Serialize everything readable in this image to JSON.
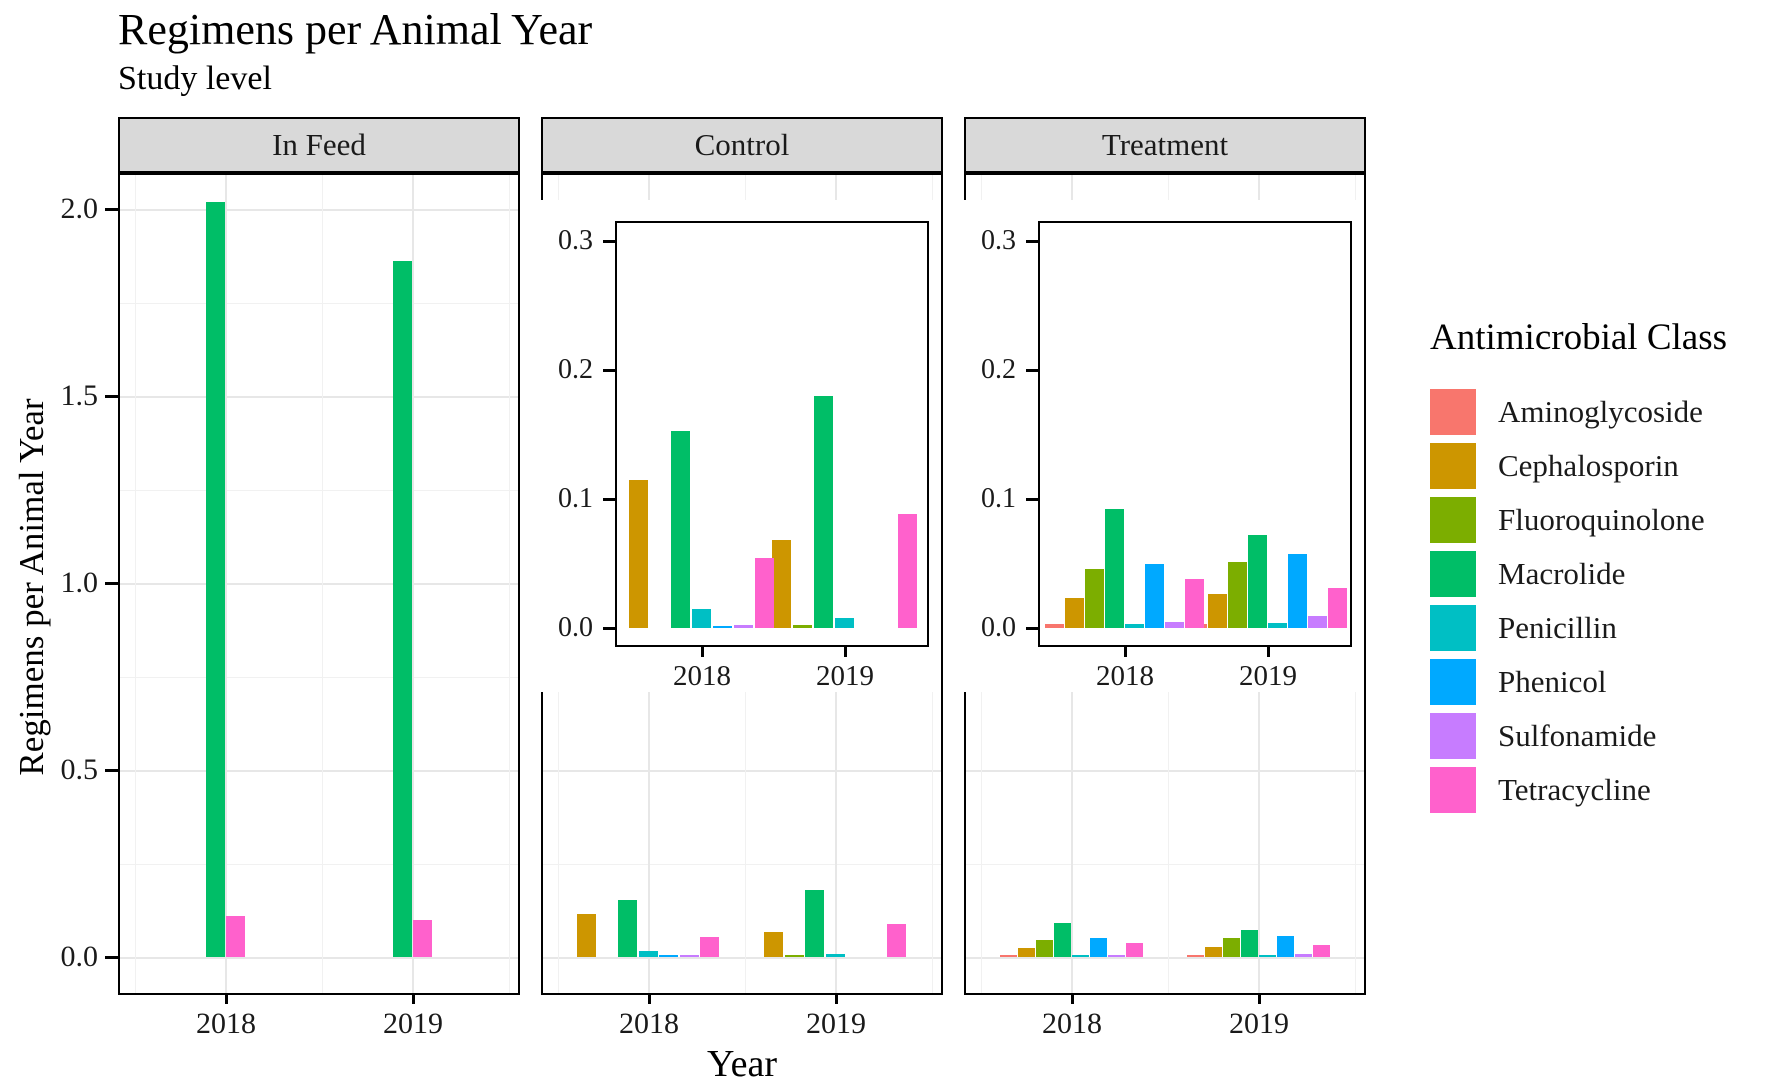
{
  "title": "Regimens per Animal Year",
  "subtitle": "Study level",
  "x_axis": {
    "title": "Year",
    "ticks": [
      "2018",
      "2019"
    ]
  },
  "y_axis": {
    "title": "Regimens per Animal Year",
    "ticks": [
      "2.0",
      "1.5",
      "1.0",
      "0.5",
      "0.0"
    ]
  },
  "legend": {
    "title": "Antimicrobial Class",
    "items": [
      {
        "label": "Aminoglycoside",
        "color": "#F8766D"
      },
      {
        "label": "Cephalosporin",
        "color": "#CD9600"
      },
      {
        "label": "Fluoroquinolone",
        "color": "#7CAE00"
      },
      {
        "label": "Macrolide",
        "color": "#00BE67"
      },
      {
        "label": "Penicillin",
        "color": "#00BFC4"
      },
      {
        "label": "Phenicol",
        "color": "#00A9FF"
      },
      {
        "label": "Sulfonamide",
        "color": "#C77CFF"
      },
      {
        "label": "Tetracycline",
        "color": "#FF61CC"
      }
    ]
  },
  "chart_data": {
    "type": "bar",
    "title": "Regimens per Animal Year",
    "subtitle": "Study level",
    "xlabel": "Year",
    "ylabel": "Regimens per Animal Year",
    "categories": [
      "2018",
      "2019"
    ],
    "ylim": [
      0,
      2.0
    ],
    "grid": true,
    "legend_position": "right",
    "facets": [
      {
        "label": "In Feed",
        "inset": null,
        "series": [
          {
            "name": "Macrolide",
            "values": [
              2.02,
              1.86
            ]
          },
          {
            "name": "Tetracycline",
            "values": [
              0.11,
              0.1
            ]
          }
        ]
      },
      {
        "label": "Control",
        "inset": {
          "ylim": [
            0,
            0.3
          ],
          "tick_labels": [
            "0.3",
            "0.2",
            "0.1",
            "0.0"
          ]
        },
        "series": [
          {
            "name": "Cephalosporin",
            "values": [
              0.115,
              0.068
            ]
          },
          {
            "name": "Fluoroquinolone",
            "values": [
              0,
              0.002
            ]
          },
          {
            "name": "Macrolide",
            "values": [
              0.153,
              0.18
            ]
          },
          {
            "name": "Penicillin",
            "values": [
              0.015,
              0.008
            ]
          },
          {
            "name": "Phenicol",
            "values": [
              0.001,
              0
            ]
          },
          {
            "name": "Sulfonamide",
            "values": [
              0.002,
              0
            ]
          },
          {
            "name": "Tetracycline",
            "values": [
              0.054,
              0.088
            ]
          }
        ]
      },
      {
        "label": "Treatment",
        "inset": {
          "ylim": [
            0,
            0.3
          ],
          "tick_labels": [
            "0.3",
            "0.2",
            "0.1",
            "0.0"
          ]
        },
        "series": [
          {
            "name": "Aminoglycoside",
            "values": [
              0.003,
              0.003
            ]
          },
          {
            "name": "Cephalosporin",
            "values": [
              0.023,
              0.026
            ]
          },
          {
            "name": "Fluoroquinolone",
            "values": [
              0.046,
              0.051
            ]
          },
          {
            "name": "Macrolide",
            "values": [
              0.092,
              0.072
            ]
          },
          {
            "name": "Penicillin",
            "values": [
              0.003,
              0.004
            ]
          },
          {
            "name": "Phenicol",
            "values": [
              0.05,
              0.057
            ]
          },
          {
            "name": "Sulfonamide",
            "values": [
              0.005,
              0.009
            ]
          },
          {
            "name": "Tetracycline",
            "values": [
              0.038,
              0.031
            ]
          }
        ]
      }
    ]
  }
}
